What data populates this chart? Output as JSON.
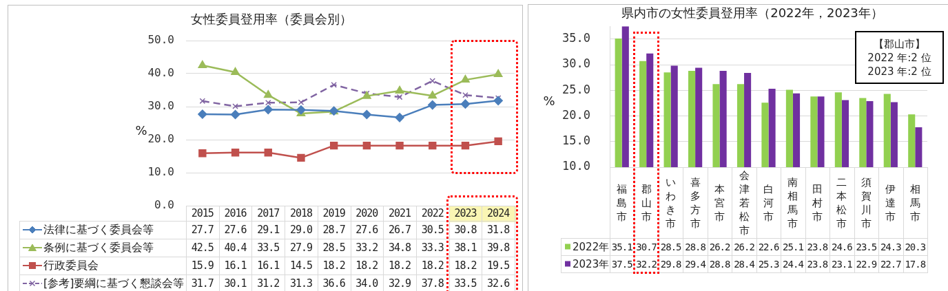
{
  "chart_data": [
    {
      "type": "line",
      "title": "女性委員登用率（委員会別）",
      "ylabel": "%",
      "categories": [
        "2015",
        "2016",
        "2017",
        "2018",
        "2019",
        "2020",
        "2021",
        "2022",
        "2023",
        "2024"
      ],
      "series": [
        {
          "name": "法律に基づく委員会等",
          "color": "#4a7ebb",
          "marker": "diamond",
          "values": [
            27.7,
            27.6,
            29.1,
            29.0,
            28.7,
            27.6,
            26.7,
            30.5,
            30.8,
            31.8
          ],
          "value_labels": [
            "27.7",
            "27.6",
            "29.1",
            "29.0",
            "28.7",
            "27.6",
            "26.7",
            "30.5",
            "30.8",
            "31.8"
          ]
        },
        {
          "name": "条例に基づく委員会等",
          "color": "#9bbb59",
          "marker": "triangle",
          "values": [
            42.5,
            40.4,
            33.5,
            27.9,
            28.5,
            33.2,
            34.8,
            33.3,
            38.1,
            39.8
          ],
          "value_labels": [
            "42.5",
            "40.4",
            "33.5",
            "27.9",
            "28.5",
            "33.2",
            "34.8",
            "33.3",
            "38.1",
            "39.8"
          ]
        },
        {
          "name": "行政委員会",
          "color": "#c0504d",
          "marker": "square",
          "values": [
            15.9,
            16.1,
            16.1,
            14.5,
            18.2,
            18.2,
            18.2,
            18.2,
            18.2,
            19.5
          ],
          "value_labels": [
            "15.9",
            "16.1",
            "16.1",
            "14.5",
            "18.2",
            "18.2",
            "18.2",
            "18.2",
            "18.2",
            "19.5"
          ]
        },
        {
          "name": "[参考]要綱に基づく懇談会等",
          "color": "#8064a2",
          "marker": "cross",
          "line_style": "dashed",
          "values": [
            31.7,
            30.1,
            31.2,
            31.3,
            36.6,
            34.0,
            32.9,
            37.8,
            33.5,
            32.6
          ],
          "value_labels": [
            "31.7",
            "30.1",
            "31.2",
            "31.3",
            "36.6",
            "34.0",
            "32.9",
            "37.8",
            "33.5",
            "32.6"
          ]
        }
      ],
      "ylim": [
        0,
        50
      ],
      "yticks": [
        {
          "value": 0,
          "label": "0.0"
        },
        {
          "value": 10,
          "label": "10.0"
        },
        {
          "value": 20,
          "label": "20.0"
        },
        {
          "value": 30,
          "label": "30.0"
        },
        {
          "value": 40,
          "label": "40.0"
        },
        {
          "value": 50,
          "label": "50.0"
        }
      ],
      "grid": "y",
      "legend": "bottom"
    },
    {
      "type": "bar",
      "title": "県内市の女性委員登用率（2022年，2023年）",
      "ylabel": "%",
      "categories": [
        "福島市",
        "郡山市",
        "いわき市",
        "喜多方市",
        "本宮市",
        "会津若松市",
        "白河市",
        "南相馬市",
        "田村市",
        "二本松市",
        "須賀川市",
        "伊達市",
        "相馬市"
      ],
      "series": [
        {
          "name": "2022年",
          "color": "#92d050",
          "values": [
            35.1,
            30.7,
            28.5,
            28.8,
            26.2,
            26.2,
            22.6,
            25.1,
            23.8,
            24.6,
            23.5,
            24.3,
            20.3
          ]
        },
        {
          "name": "2023年",
          "color": "#7030a0",
          "values": [
            37.5,
            32.2,
            29.8,
            29.4,
            28.8,
            28.4,
            25.3,
            24.4,
            23.8,
            23.1,
            22.9,
            22.7,
            17.8
          ]
        }
      ],
      "ylim": [
        10,
        37.5
      ],
      "yticks": [
        {
          "value": 10,
          "label": "10.0"
        },
        {
          "value": 15,
          "label": "15.0"
        },
        {
          "value": 20,
          "label": "20.0"
        },
        {
          "value": 25,
          "label": "25.0"
        },
        {
          "value": 30,
          "label": "30.0"
        },
        {
          "value": 35,
          "label": "35.0"
        }
      ],
      "grid": "y",
      "legend": "bottom",
      "data_labels": true,
      "annotations": [
        "【郡山市】\n2022 年:2 位\n2023 年:2 位"
      ]
    }
  ]
}
